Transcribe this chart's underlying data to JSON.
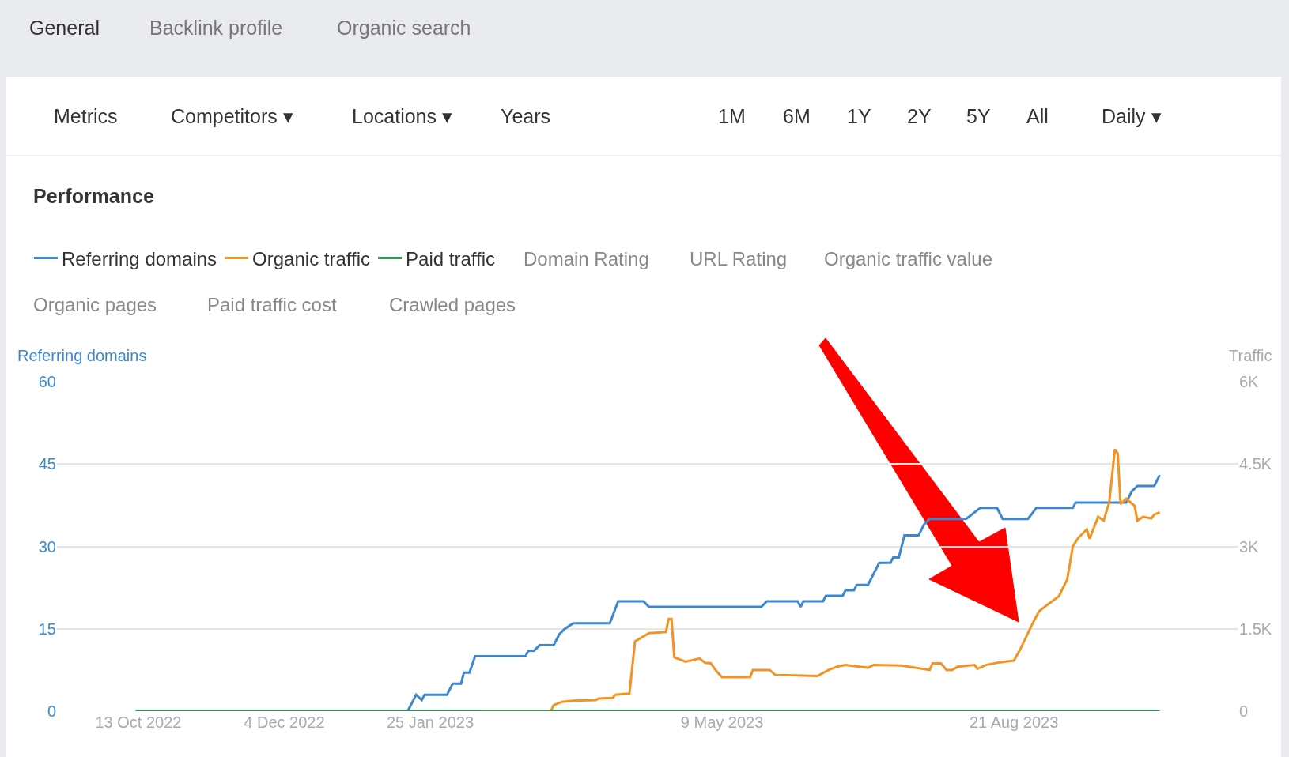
{
  "chart_data": {
    "type": "line",
    "title": "Performance",
    "ylabel": "Referring domains",
    "y2label": "Traffic",
    "annotations": [
      "General",
      "Backlink profile",
      "Organic search",
      "Metrics",
      "Competitors ▾",
      "Locations ▾",
      "Years",
      "1M",
      "6M",
      "1Y",
      "2Y",
      "5Y",
      "All",
      "Daily ▾",
      "Domain Rating",
      "URL Rating",
      "Organic traffic value",
      "Organic pages",
      "Paid traffic cost",
      "Crawled pages"
    ],
    "series": [
      {
        "name": "Referring domains",
        "color": "#3d87cf",
        "x": [
          "2023-01-17",
          "2023-01-20",
          "2023-01-22",
          "2023-01-23",
          "2023-01-31",
          "2023-02-02",
          "2023-02-05",
          "2023-02-06",
          "2023-02-08",
          "2023-02-10",
          "2023-02-28",
          "2023-03-01",
          "2023-03-03",
          "2023-03-05",
          "2023-03-10",
          "2023-03-12",
          "2023-03-14",
          "2023-03-17",
          "2023-03-30",
          "2023-04-02",
          "2023-04-11",
          "2023-04-13",
          "2023-05-23",
          "2023-05-25",
          "2023-06-05",
          "2023-06-06",
          "2023-06-07",
          "2023-06-14",
          "2023-06-15",
          "2023-06-21",
          "2023-06-22",
          "2023-06-25",
          "2023-06-26",
          "2023-06-30",
          "2023-07-01",
          "2023-07-04",
          "2023-07-08",
          "2023-07-09",
          "2023-07-11",
          "2023-07-13",
          "2023-07-18",
          "2023-07-20",
          "2023-07-22",
          "2023-08-04",
          "2023-08-09",
          "2023-08-15",
          "2023-08-17",
          "2023-08-26",
          "2023-08-29",
          "2023-09-11",
          "2023-09-12",
          "2023-09-30",
          "2023-10-02",
          "2023-10-04",
          "2023-10-10",
          "2023-10-12"
        ],
        "values": [
          0,
          3,
          2,
          3,
          3,
          5,
          5,
          7,
          7,
          10,
          10,
          11,
          11,
          12,
          12,
          14,
          15,
          16,
          16,
          20,
          20,
          19,
          19,
          20,
          20,
          19,
          20,
          20,
          21,
          21,
          22,
          22,
          23,
          23,
          24,
          27,
          27,
          28,
          28,
          32,
          32,
          34,
          35,
          35,
          37,
          37,
          35,
          35,
          37,
          37,
          38,
          38,
          40,
          41,
          41,
          43
        ]
      },
      {
        "name": "Organic traffic",
        "color": "#f29423",
        "axis": "y2",
        "x": [
          "2023-02-12",
          "2023-03-09",
          "2023-03-10",
          "2023-03-13",
          "2023-03-17",
          "2023-03-25",
          "2023-03-26",
          "2023-03-31",
          "2023-04-01",
          "2023-04-06",
          "2023-04-08",
          "2023-04-13",
          "2023-04-19",
          "2023-04-20",
          "2023-04-21",
          "2023-04-22",
          "2023-04-24",
          "2023-04-26",
          "2023-05-01",
          "2023-05-03",
          "2023-05-05",
          "2023-05-07",
          "2023-05-09",
          "2023-05-19",
          "2023-05-20",
          "2023-05-26",
          "2023-05-28",
          "2023-06-12",
          "2023-06-16",
          "2023-06-19",
          "2023-06-22",
          "2023-06-27",
          "2023-06-30",
          "2023-07-02",
          "2023-07-12",
          "2023-07-22",
          "2023-07-23",
          "2023-07-26",
          "2023-07-28",
          "2023-07-30",
          "2023-08-01",
          "2023-08-07",
          "2023-08-08",
          "2023-08-11",
          "2023-08-16",
          "2023-08-21",
          "2023-08-23",
          "2023-08-28",
          "2023-08-30",
          "2023-09-02",
          "2023-09-06",
          "2023-09-09",
          "2023-09-11",
          "2023-09-13",
          "2023-09-16",
          "2023-09-17",
          "2023-09-20",
          "2023-09-22",
          "2023-09-24",
          "2023-09-26",
          "2023-09-27",
          "2023-09-28",
          "2023-09-30",
          "2023-10-03",
          "2023-10-04",
          "2023-10-06",
          "2023-10-09",
          "2023-10-10",
          "2023-10-12"
        ],
        "values": [
          0,
          0,
          110,
          170,
          190,
          200,
          230,
          240,
          300,
          320,
          1270,
          1420,
          1440,
          1680,
          1680,
          980,
          940,
          900,
          960,
          880,
          870,
          730,
          620,
          620,
          750,
          750,
          660,
          640,
          750,
          810,
          840,
          810,
          790,
          840,
          830,
          750,
          870,
          870,
          750,
          750,
          810,
          840,
          770,
          840,
          890,
          920,
          1100,
          1630,
          1820,
          1940,
          2090,
          2400,
          3000,
          3160,
          3310,
          3140,
          3540,
          3470,
          3810,
          4770,
          4690,
          3770,
          3870,
          3740,
          3470,
          3540,
          3510,
          3580,
          3620
        ]
      },
      {
        "name": "Paid traffic",
        "color": "#2e9a5a",
        "axis": "y2",
        "x": [
          "2022-10-12",
          "2023-10-12"
        ],
        "values": [
          0,
          0
        ]
      }
    ],
    "xlim": [
      "2022-09-14",
      "2023-11-09"
    ],
    "xticks": [
      {
        "value": "2022-10-13",
        "label": "13 Oct 2022"
      },
      {
        "value": "2022-12-04",
        "label": "4 Dec 2022"
      },
      {
        "value": "2023-01-25",
        "label": "25 Jan 2023"
      },
      {
        "value": "2023-05-09",
        "label": "9 May 2023"
      },
      {
        "value": "2023-08-21",
        "label": "21 Aug 2023"
      }
    ],
    "ylim": [
      0,
      60
    ],
    "yticks": [
      0,
      15,
      30,
      45,
      60
    ],
    "y2lim": [
      0,
      6000
    ],
    "y2ticks": [
      0,
      {
        "value": 1500,
        "label": "1.5K"
      },
      {
        "value": 3000,
        "label": "3K"
      },
      {
        "value": 4500,
        "label": "4.5K"
      },
      {
        "value": 6000,
        "label": "6K"
      }
    ],
    "grid": "y",
    "legend": "top left",
    "marker": "none",
    "line_style": "solid"
  }
}
